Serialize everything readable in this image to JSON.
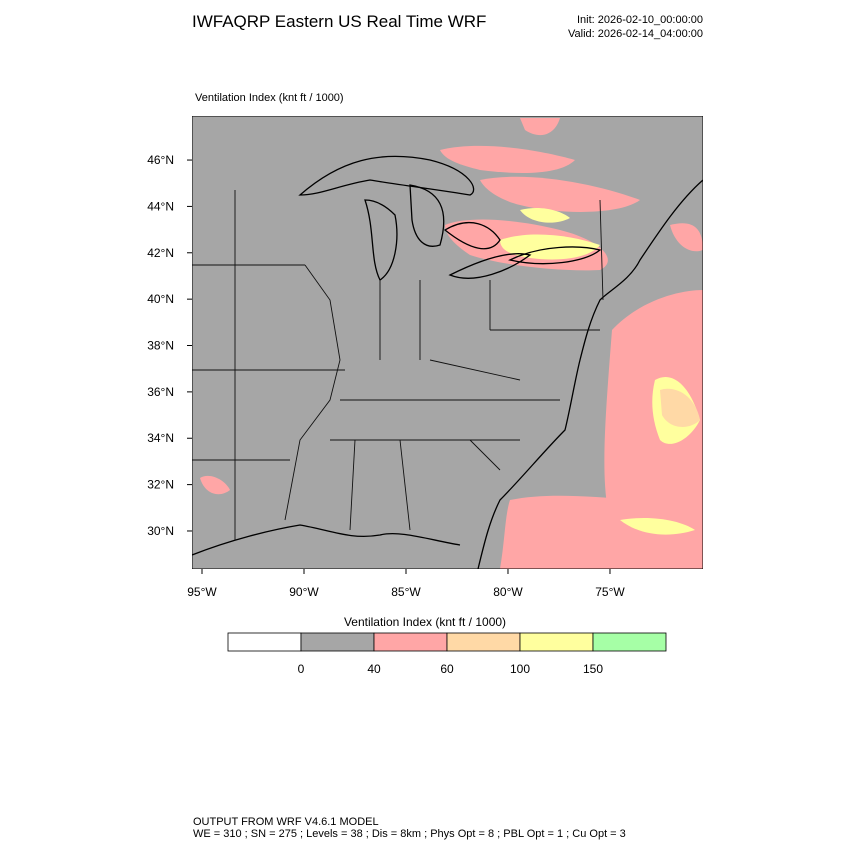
{
  "header": {
    "title": "IWFAQRP Eastern US Real Time WRF",
    "init": "Init: 2026-02-10_00:00:00",
    "valid": "Valid: 2026-02-14_04:00:00"
  },
  "map": {
    "panel_title": "Ventilation Index   (knt ft / 1000)",
    "lat_range": [
      28.36,
      47.9
    ],
    "lon_range": [
      -95.49,
      -70.44
    ],
    "lat_ticks": [
      {
        "value": 30,
        "label": "30°N"
      },
      {
        "value": 32,
        "label": "32°N"
      },
      {
        "value": 34,
        "label": "34°N"
      },
      {
        "value": 36,
        "label": "36°N"
      },
      {
        "value": 38,
        "label": "38°N"
      },
      {
        "value": 40,
        "label": "40°N"
      },
      {
        "value": 42,
        "label": "42°N"
      },
      {
        "value": 44,
        "label": "44°N"
      },
      {
        "value": 46,
        "label": "46°N"
      }
    ],
    "lon_ticks": [
      {
        "value": -95,
        "label": "95°W"
      },
      {
        "value": -90,
        "label": "90°W"
      },
      {
        "value": -85,
        "label": "85°W"
      },
      {
        "value": -80,
        "label": "80°W"
      },
      {
        "value": -75,
        "label": "75°W"
      }
    ]
  },
  "colorbar": {
    "title": "Ventilation Index  (knt ft / 1000)",
    "levels": [
      0,
      40,
      60,
      100,
      150
    ],
    "colors": [
      "#ffffff",
      "#a6a6a6",
      "#ffa6a6",
      "#ffd9a6",
      "#ffff9e",
      "#a6ffa6"
    ]
  },
  "footer": {
    "line1": "OUTPUT FROM WRF V4.6.1 MODEL",
    "line2": "WE = 310 ; SN = 275 ; Levels = 38 ; Dis = 8km ; Phys Opt = 8 ; PBL Opt = 1 ; Cu Opt = 3"
  }
}
